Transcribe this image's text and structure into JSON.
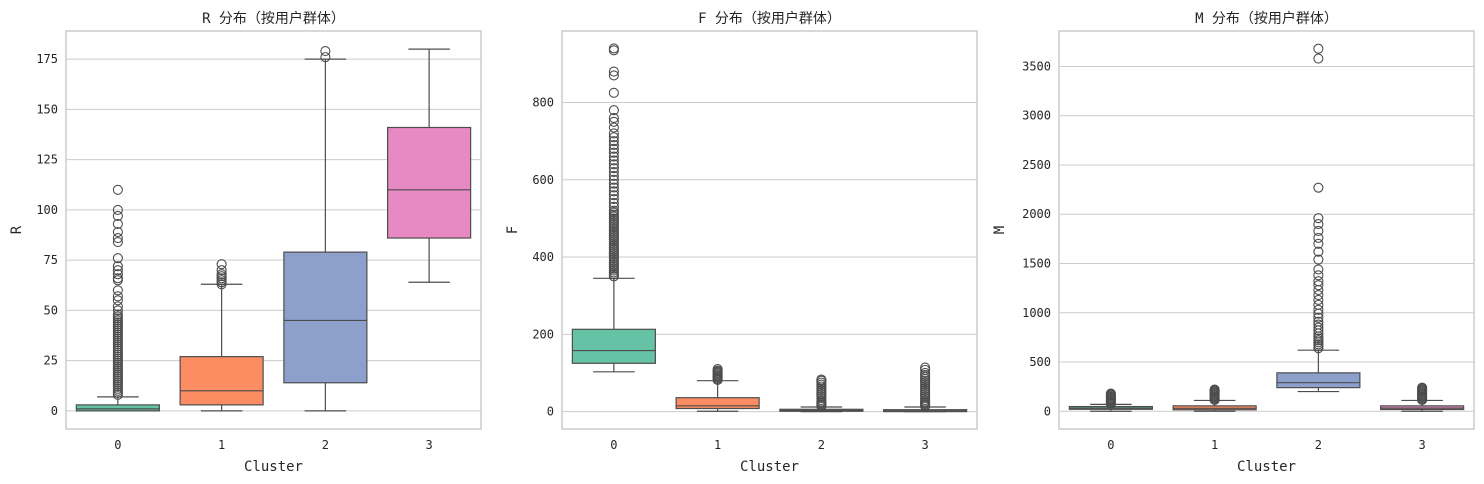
{
  "figure": {
    "colors": {
      "grid": "#cccccc",
      "frame": "#cccccc",
      "line": "#4d4d4d",
      "text": "#262626"
    },
    "palette": [
      "#66c2a5",
      "#fc8d62",
      "#8da0cb",
      "#e78ac3"
    ]
  },
  "chart_data": [
    {
      "type": "box",
      "title": "R 分布（按用户群体）",
      "xlabel": "Cluster",
      "ylabel": "R",
      "categories": [
        "0",
        "1",
        "2",
        "3"
      ],
      "ylim": [
        -9,
        189
      ],
      "yticks": [
        0,
        25,
        50,
        75,
        100,
        125,
        150,
        175
      ],
      "grid": "horizontal",
      "boxes": [
        {
          "cluster": "0",
          "q1": 0,
          "median": 1,
          "q3": 3,
          "whisker_low": 0,
          "whisker_high": 7,
          "outliers": [
            8,
            9,
            10,
            11,
            12,
            13,
            14,
            15,
            16,
            17,
            18,
            19,
            20,
            21,
            22,
            23,
            24,
            25,
            26,
            27,
            28,
            29,
            30,
            31,
            32,
            33,
            34,
            35,
            36,
            37,
            38,
            39,
            40,
            41,
            42,
            43,
            44,
            45,
            46,
            47,
            48,
            50,
            52,
            55,
            57,
            60,
            65,
            66,
            68,
            70,
            72,
            76,
            84,
            86,
            89,
            93,
            97,
            100,
            110
          ]
        },
        {
          "cluster": "1",
          "q1": 3,
          "median": 10,
          "q3": 27,
          "whisker_low": 0,
          "whisker_high": 63,
          "outliers": [
            63,
            64,
            65,
            66,
            67,
            68,
            70,
            73
          ]
        },
        {
          "cluster": "2",
          "q1": 14,
          "median": 45,
          "q3": 79,
          "whisker_low": 0,
          "whisker_high": 175,
          "outliers": [
            176,
            179
          ]
        },
        {
          "cluster": "3",
          "q1": 86,
          "median": 110,
          "q3": 141,
          "whisker_low": 64,
          "whisker_high": 180,
          "outliers": []
        }
      ]
    },
    {
      "type": "box",
      "title": "F 分布（按用户群体）",
      "xlabel": "Cluster",
      "ylabel": "F",
      "categories": [
        "0",
        "1",
        "2",
        "3"
      ],
      "ylim": [
        -45,
        985
      ],
      "yticks": [
        0,
        200,
        400,
        600,
        800
      ],
      "grid": "horizontal",
      "boxes": [
        {
          "cluster": "0",
          "q1": 125,
          "median": 158,
          "q3": 213,
          "whisker_low": 103,
          "whisker_high": 345,
          "outliers": [
            350,
            355,
            360,
            365,
            370,
            375,
            380,
            385,
            390,
            395,
            400,
            405,
            410,
            415,
            420,
            425,
            430,
            435,
            440,
            445,
            450,
            455,
            460,
            465,
            470,
            475,
            480,
            485,
            490,
            495,
            500,
            505,
            510,
            515,
            520,
            530,
            540,
            550,
            560,
            570,
            580,
            590,
            600,
            610,
            620,
            630,
            640,
            650,
            660,
            670,
            680,
            690,
            700,
            710,
            720,
            735,
            750,
            760,
            780,
            825,
            870,
            880,
            935,
            940
          ]
        },
        {
          "cluster": "1",
          "q1": 8,
          "median": 15,
          "q3": 36,
          "whisker_low": 1,
          "whisker_high": 80,
          "outliers": [
            82,
            85,
            88,
            91,
            94,
            97,
            100,
            103,
            106,
            110
          ]
        },
        {
          "cluster": "2",
          "q1": 1,
          "median": 3,
          "q3": 6,
          "whisker_low": 0,
          "whisker_high": 12,
          "outliers": [
            14,
            17,
            20,
            23,
            26,
            30,
            35,
            40,
            45,
            50,
            55,
            60,
            65,
            70,
            75,
            80,
            83
          ]
        },
        {
          "cluster": "3",
          "q1": 0,
          "median": 2,
          "q3": 5,
          "whisker_low": 0,
          "whisker_high": 12,
          "outliers": [
            14,
            17,
            20,
            23,
            26,
            30,
            35,
            40,
            45,
            50,
            55,
            60,
            65,
            70,
            75,
            80,
            85,
            90,
            95,
            100,
            108,
            114
          ]
        }
      ]
    },
    {
      "type": "box",
      "title": "M 分布（按用户群体）",
      "xlabel": "Cluster",
      "ylabel": "M",
      "categories": [
        "0",
        "1",
        "2",
        "3"
      ],
      "ylim": [
        -180,
        3860
      ],
      "yticks": [
        0,
        500,
        1000,
        1500,
        2000,
        2500,
        3000,
        3500
      ],
      "grid": "horizontal",
      "boxes": [
        {
          "cluster": "0",
          "q1": 20,
          "median": 32,
          "q3": 48,
          "whisker_low": 0,
          "whisker_high": 70,
          "outliers": [
            75,
            85,
            95,
            105,
            115,
            125,
            135,
            145,
            155,
            165,
            175,
            180
          ]
        },
        {
          "cluster": "1",
          "q1": 15,
          "median": 30,
          "q3": 55,
          "whisker_low": 0,
          "whisker_high": 110,
          "outliers": [
            115,
            125,
            135,
            145,
            155,
            165,
            175,
            185,
            195,
            205,
            215,
            220
          ]
        },
        {
          "cluster": "2",
          "q1": 240,
          "median": 290,
          "q3": 390,
          "whisker_low": 200,
          "whisker_high": 620,
          "outliers": [
            640,
            660,
            680,
            700,
            720,
            740,
            760,
            790,
            820,
            850,
            880,
            910,
            950,
            990,
            1030,
            1080,
            1130,
            1180,
            1230,
            1280,
            1320,
            1380,
            1440,
            1540,
            1620,
            1700,
            1760,
            1830,
            1900,
            1960,
            2270,
            3580,
            3680
          ]
        },
        {
          "cluster": "3",
          "q1": 18,
          "median": 32,
          "q3": 55,
          "whisker_low": 0,
          "whisker_high": 110,
          "outliers": [
            115,
            125,
            135,
            145,
            155,
            165,
            175,
            185,
            195,
            205,
            215,
            225,
            235,
            240
          ]
        }
      ]
    }
  ]
}
